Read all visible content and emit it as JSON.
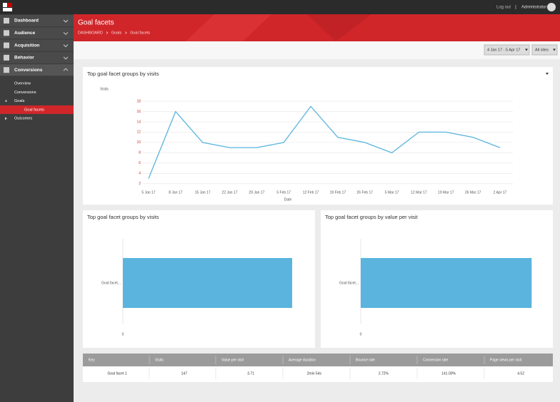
{
  "topbar": {
    "logout": "Log out",
    "user": "Administrator"
  },
  "nav": {
    "items": [
      "Dashboard",
      "Audience",
      "Acquisition",
      "Behavior",
      "Conversions"
    ],
    "subitems": [
      "Overview",
      "Conversions",
      "Goals",
      "Goal facets",
      "Outcomes"
    ]
  },
  "header": {
    "title": "Goal facets",
    "breadcrumb": [
      "DASHBOARD",
      "Goals",
      "Goal facets"
    ]
  },
  "filters": [
    "4 Jan 17 - 5 Apr 17",
    "All sites"
  ],
  "chart_data": [
    {
      "type": "line",
      "title": "Top goal facet groups by visits",
      "y_label": "Visits",
      "x_label": "Date",
      "categories": [
        "5 Jan 17",
        "8 Jan 17",
        "15 Jan 17",
        "22 Jan 17",
        "29 Jan 17",
        "5 Feb 17",
        "12 Feb 17",
        "19 Feb 17",
        "26 Feb 17",
        "5 Mar 17",
        "12 Mar 17",
        "19 Mar 17",
        "26 Mar 17",
        "2 Apr 17"
      ],
      "values": [
        3,
        16,
        10,
        9,
        9,
        10,
        17,
        11,
        10,
        8,
        12,
        12,
        11,
        9
      ],
      "color": "#5ab4dd",
      "ylim": [
        1,
        18
      ],
      "yticks": [
        2,
        4,
        6,
        8,
        10,
        12,
        14,
        16,
        18
      ],
      "grid": true
    },
    {
      "type": "bar",
      "title": "Top goal facet groups by visits",
      "categories": [
        "Goal facet..."
      ],
      "values": [
        147
      ],
      "color": "#5ab4dd",
      "xlim": [
        0,
        160
      ],
      "xticks": [
        0
      ]
    },
    {
      "type": "bar",
      "title": "Top goal facet groups by value per visit",
      "categories": [
        "Goal facet..."
      ],
      "values": [
        3.71
      ],
      "color": "#5ab4dd",
      "xlim": [
        0,
        4
      ],
      "xticks": [
        0
      ]
    }
  ],
  "table": {
    "headers": [
      "Key",
      "Visits",
      "Value per visit",
      "Average duration",
      "Bounce rate",
      "Conversion rate",
      "Page views per visit"
    ],
    "rows": [
      [
        "Goal facet 1",
        "147",
        "3.71",
        "2min 54s",
        "2.72%",
        "141.00%",
        "4.52"
      ]
    ]
  }
}
